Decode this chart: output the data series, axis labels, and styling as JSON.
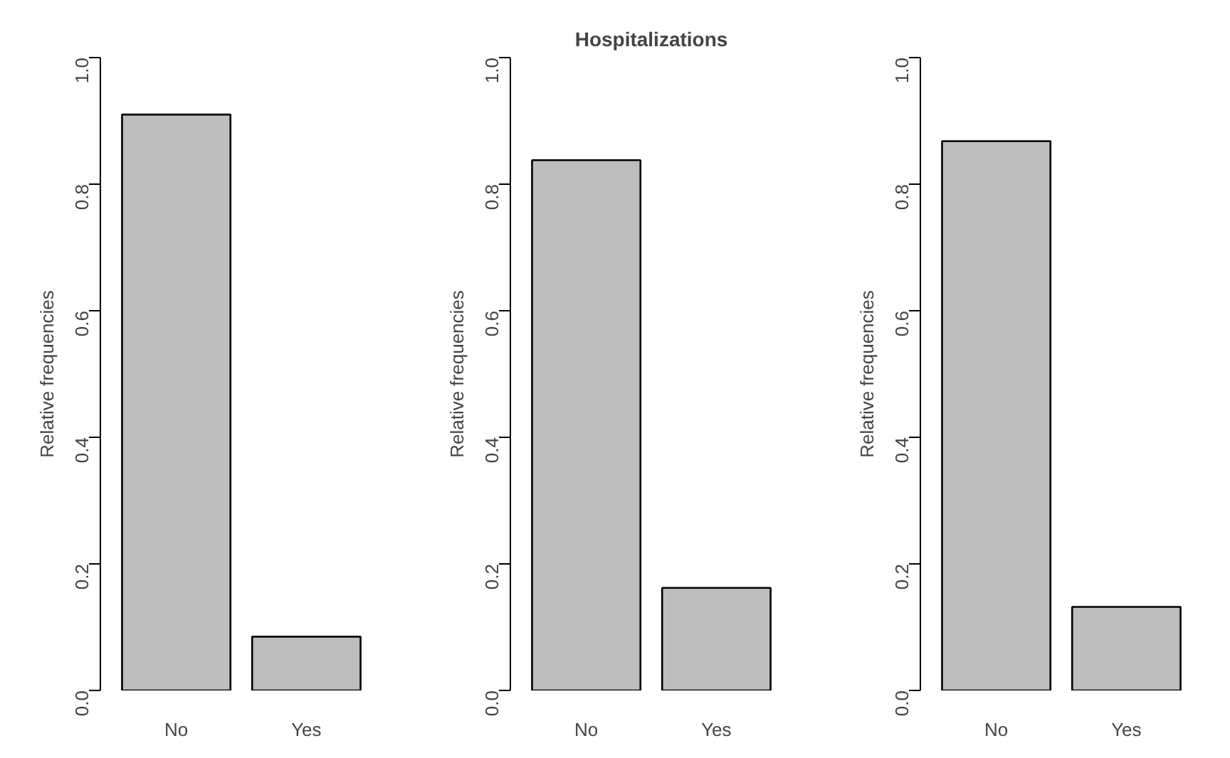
{
  "chart_data": [
    {
      "type": "bar",
      "ylabel": "Relative frequencies",
      "categories": [
        "No",
        "Yes"
      ],
      "values": [
        0.91,
        0.085
      ],
      "color": "#bebebe",
      "ylim": [
        0,
        1
      ],
      "yticks": [
        {
          "value": 0,
          "label": "0.0"
        },
        {
          "value": 0.2,
          "label": "0.2"
        },
        {
          "value": 0.4,
          "label": "0.4"
        },
        {
          "value": 0.6,
          "label": "0.6"
        },
        {
          "value": 0.8,
          "label": "0.8"
        },
        {
          "value": 1,
          "label": "1.0"
        }
      ]
    },
    {
      "type": "bar",
      "title": "Hospitalizations",
      "ylabel": "Relative frequencies",
      "categories": [
        "No",
        "Yes"
      ],
      "values": [
        0.838,
        0.162
      ],
      "color": "#bebebe",
      "ylim": [
        0,
        1
      ],
      "yticks": [
        {
          "value": 0,
          "label": "0.0"
        },
        {
          "value": 0.2,
          "label": "0.2"
        },
        {
          "value": 0.4,
          "label": "0.4"
        },
        {
          "value": 0.6,
          "label": "0.6"
        },
        {
          "value": 0.8,
          "label": "0.8"
        },
        {
          "value": 1,
          "label": "1.0"
        }
      ]
    },
    {
      "type": "bar",
      "ylabel": "Relative frequencies",
      "categories": [
        "No",
        "Yes"
      ],
      "values": [
        0.868,
        0.132
      ],
      "color": "#bebebe",
      "ylim": [
        0,
        1
      ],
      "yticks": [
        {
          "value": 0,
          "label": "0.0"
        },
        {
          "value": 0.2,
          "label": "0.2"
        },
        {
          "value": 0.4,
          "label": "0.4"
        },
        {
          "value": 0.6,
          "label": "0.6"
        },
        {
          "value": 0.8,
          "label": "0.8"
        },
        {
          "value": 1,
          "label": "1.0"
        }
      ]
    }
  ]
}
